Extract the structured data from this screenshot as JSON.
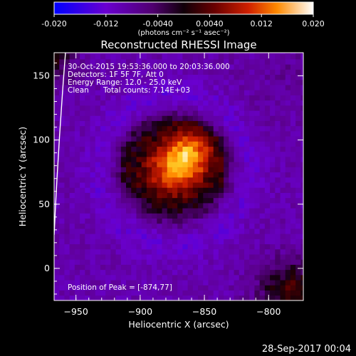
{
  "chart_data": {
    "type": "heatmap",
    "title": "Reconstructed RHESSI Image",
    "xlabel": "Heliocentric X (arcsec)",
    "ylabel": "Heliocentric Y (arcsec)",
    "xlim": [
      -967,
      -773
    ],
    "ylim": [
      -25,
      168
    ],
    "x_ticks": [
      -950,
      -900,
      -850,
      -800
    ],
    "y_ticks": [
      0,
      50,
      100,
      150
    ],
    "colorbar": {
      "range": [
        -0.02,
        0.02
      ],
      "ticks": [
        "-0.020",
        "-0.012",
        "-0.0040",
        "0.0040",
        "0.012",
        "0.020"
      ],
      "tick_values": [
        -0.02,
        -0.012,
        -0.004,
        0.004,
        0.012,
        0.02
      ],
      "label": "(photons cm⁻² s⁻¹ asec⁻²)",
      "colors": [
        "#0000ff",
        "#7a00d8",
        "#200010",
        "#5a0000",
        "#c01800",
        "#ff6a00",
        "#ffb000",
        "#ffffff"
      ]
    },
    "annotations": {
      "time_range": "30-Oct-2015 19:53:36.000 to 20:03:36.000",
      "detectors": "Detectors: 1F 5F 7F, Att 0",
      "energy": "Energy Range: 12.0 - 25.0 keV",
      "method": "Clean",
      "total_counts": "Total counts: 7.14E+03",
      "peak": "Position of Peak = [-874,77]"
    },
    "peak": {
      "x": -874,
      "y": 77,
      "value": 0.02
    },
    "sources": [
      {
        "x": -874,
        "y": 77,
        "amp": 0.0205,
        "sx": 23,
        "sy": 21
      },
      {
        "x": -860,
        "y": 92,
        "amp": 0.011,
        "sx": 13,
        "sy": 13
      },
      {
        "x": -968,
        "y": 168,
        "amp": 0.009,
        "sx": 12,
        "sy": 14
      },
      {
        "x": -782,
        "y": -18,
        "amp": 0.011,
        "sx": 18,
        "sy": 17
      },
      {
        "x": -785,
        "y": 150,
        "amp": 0.0015,
        "sx": 25,
        "sy": 25
      }
    ],
    "background": -0.0085,
    "limb_arc": true
  },
  "footer": {
    "date": "28-Sep-2017 00:04"
  }
}
